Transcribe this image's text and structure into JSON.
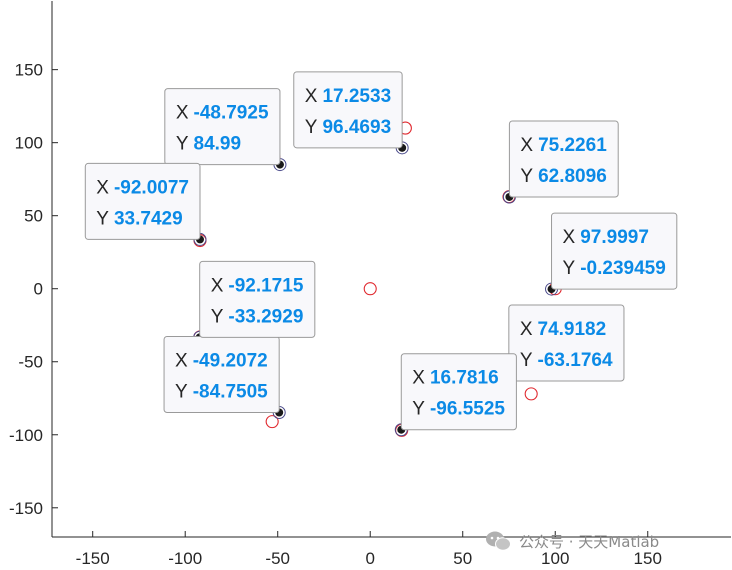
{
  "chart_data": {
    "type": "scatter",
    "xlim": [
      -172,
      195
    ],
    "ylim": [
      -170,
      197
    ],
    "x_ticks": [
      -150,
      -100,
      -50,
      0,
      50,
      100,
      150
    ],
    "y_ticks": [
      150,
      100,
      50,
      0,
      -50,
      -100,
      -150
    ],
    "grid": false,
    "legend": "none",
    "series": [
      {
        "marker": "open-circle",
        "color": "#e0282e",
        "points": [
          {
            "x": 0,
            "y": 0
          },
          {
            "x": 19,
            "y": 110
          },
          {
            "x": -52,
            "y": 90
          },
          {
            "x": -92,
            "y": 33
          },
          {
            "x": 75,
            "y": 63
          },
          {
            "x": 100,
            "y": 0
          },
          {
            "x": 87,
            "y": -72
          },
          {
            "x": 17,
            "y": -97
          },
          {
            "x": -53,
            "y": -91
          },
          {
            "x": -92,
            "y": -33
          }
        ]
      },
      {
        "marker": "filled-dot",
        "color": "#1a1a1a",
        "points": [
          {
            "x": 17.2533,
            "y": 96.4693
          },
          {
            "x": -48.7925,
            "y": 84.99
          },
          {
            "x": -92.0077,
            "y": 33.7429
          },
          {
            "x": 75.2261,
            "y": 62.8096
          },
          {
            "x": 97.9997,
            "y": -0.239459
          },
          {
            "x": 74.9182,
            "y": -63.1764
          },
          {
            "x": 16.7816,
            "y": -96.5525
          },
          {
            "x": -49.2072,
            "y": -84.7505
          },
          {
            "x": -92.1715,
            "y": -33.2929
          }
        ]
      }
    ],
    "datatips": [
      {
        "x_key": "X",
        "x_text": "17.2533",
        "y_key": "Y",
        "y_text": "96.4693",
        "x": 17.2533,
        "y": 96.4693,
        "placement": "top-left"
      },
      {
        "x_key": "X",
        "x_text": "-48.7925",
        "y_key": "Y",
        "y_text": "84.99",
        "x": -48.7925,
        "y": 84.99,
        "placement": "top-left"
      },
      {
        "x_key": "X",
        "x_text": "-92.0077",
        "y_key": "Y",
        "y_text": "33.7429",
        "x": -92.0077,
        "y": 33.7429,
        "placement": "top-left"
      },
      {
        "x_key": "X",
        "x_text": "75.2261",
        "y_key": "Y",
        "y_text": "62.8096",
        "x": 75.2261,
        "y": 62.8096,
        "placement": "top-right"
      },
      {
        "x_key": "X",
        "x_text": "97.9997",
        "y_key": "Y",
        "y_text": "-0.239459",
        "x": 97.9997,
        "y": -0.239459,
        "placement": "top-right"
      },
      {
        "x_key": "X",
        "x_text": "74.9182",
        "y_key": "Y",
        "y_text": "-63.1764",
        "x": 74.9182,
        "y": -63.1764,
        "placement": "top-right"
      },
      {
        "x_key": "X",
        "x_text": "16.7816",
        "y_key": "Y",
        "y_text": "-96.5525",
        "x": 16.7816,
        "y": -96.5525,
        "placement": "top-right"
      },
      {
        "x_key": "X",
        "x_text": "-49.2072",
        "y_key": "Y",
        "y_text": "-84.7505",
        "x": -49.2072,
        "y": -84.7505,
        "placement": "top-left"
      },
      {
        "x_key": "X",
        "x_text": "-92.1715",
        "y_key": "Y",
        "y_text": "-33.2929",
        "x": -92.1715,
        "y": -33.2929,
        "placement": "top-right"
      }
    ]
  },
  "watermark": {
    "icon": "wechat-icon",
    "text": "公众号 · 天天Matlab"
  }
}
